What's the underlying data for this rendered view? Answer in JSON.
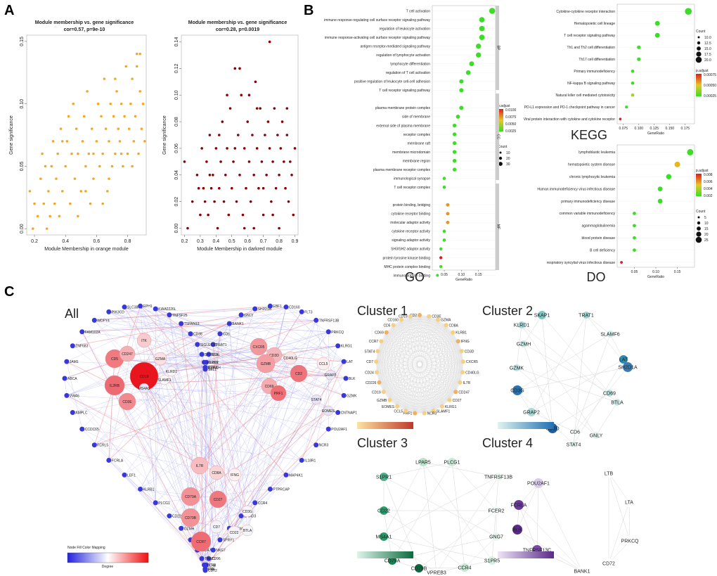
{
  "panels": {
    "A": "A",
    "B": "B",
    "C": "C"
  },
  "scatter_orange": {
    "title": "Module membership vs. gene significance",
    "stats": "cor=0.57, p=9e-10",
    "xlabel": "Module Membership in orange module",
    "ylabel": "Gene significance",
    "color": "#f5a623",
    "xticks": [
      "0.2",
      "0.4",
      "0.6",
      "0.8"
    ],
    "yticks": [
      "0.00",
      "0.05",
      "0.10",
      "0.15"
    ]
  },
  "scatter_darkred": {
    "title": "Module membership vs. gene significance",
    "stats": "cor=0.28, p=0.0019",
    "xlabel": "Module Membership in darkred module",
    "ylabel": "Gene significance",
    "color": "#8b0000",
    "xticks": [
      "0.2",
      "0.3",
      "0.4",
      "0.5",
      "0.6",
      "0.7",
      "0.8",
      "0.9"
    ],
    "yticks": [
      "0.00",
      "0.02",
      "0.04",
      "0.06",
      "0.08",
      "0.10",
      "0.12",
      "0.14"
    ]
  },
  "chart_data": [
    {
      "type": "scatter",
      "title": "Module membership vs. gene significance",
      "subtitle": "cor=0.57, p=9e-10",
      "xlabel": "Module Membership in orange module",
      "ylabel": "Gene significance",
      "xlim": [
        0.15,
        0.92
      ],
      "ylim": [
        -0.005,
        0.155
      ],
      "points": [
        [
          0.17,
          0.03
        ],
        [
          0.2,
          0.02
        ],
        [
          0.22,
          0.01
        ],
        [
          0.24,
          0.04
        ],
        [
          0.25,
          0.06
        ],
        [
          0.26,
          0.02
        ],
        [
          0.28,
          0.0
        ],
        [
          0.29,
          0.03
        ],
        [
          0.3,
          0.01
        ],
        [
          0.31,
          0.05
        ],
        [
          0.32,
          0.07
        ],
        [
          0.33,
          0.02
        ],
        [
          0.34,
          0.04
        ],
        [
          0.35,
          0.06
        ],
        [
          0.36,
          0.01
        ],
        [
          0.37,
          0.08
        ],
        [
          0.38,
          0.03
        ],
        [
          0.4,
          0.05
        ],
        [
          0.41,
          0.07
        ],
        [
          0.42,
          0.09
        ],
        [
          0.43,
          0.02
        ],
        [
          0.44,
          0.06
        ],
        [
          0.45,
          0.1
        ],
        [
          0.46,
          0.04
        ],
        [
          0.47,
          0.08
        ],
        [
          0.48,
          0.06
        ],
        [
          0.5,
          0.03
        ],
        [
          0.51,
          0.07
        ],
        [
          0.52,
          0.09
        ],
        [
          0.53,
          0.05
        ],
        [
          0.54,
          0.11
        ],
        [
          0.55,
          0.06
        ],
        [
          0.56,
          0.02
        ],
        [
          0.57,
          0.08
        ],
        [
          0.58,
          0.04
        ],
        [
          0.6,
          0.07
        ],
        [
          0.61,
          0.1
        ],
        [
          0.62,
          0.05
        ],
        [
          0.63,
          0.09
        ],
        [
          0.64,
          0.06
        ],
        [
          0.65,
          0.12
        ],
        [
          0.66,
          0.08
        ],
        [
          0.67,
          0.03
        ],
        [
          0.68,
          0.07
        ],
        [
          0.69,
          0.1
        ],
        [
          0.7,
          0.05
        ],
        [
          0.71,
          0.09
        ],
        [
          0.72,
          0.06
        ],
        [
          0.73,
          0.11
        ],
        [
          0.74,
          0.08
        ],
        [
          0.75,
          0.07
        ],
        [
          0.76,
          0.1
        ],
        [
          0.77,
          0.05
        ],
        [
          0.78,
          0.09
        ],
        [
          0.79,
          0.13
        ],
        [
          0.8,
          0.06
        ],
        [
          0.81,
          0.08
        ],
        [
          0.82,
          0.1
        ],
        [
          0.83,
          0.12
        ],
        [
          0.84,
          0.07
        ],
        [
          0.85,
          0.09
        ],
        [
          0.86,
          0.14
        ],
        [
          0.87,
          0.06
        ],
        [
          0.88,
          0.11
        ],
        [
          0.89,
          0.08
        ],
        [
          0.9,
          0.1
        ],
        [
          0.91,
          0.07
        ],
        [
          0.86,
          0.13
        ],
        [
          0.83,
          0.05
        ],
        [
          0.72,
          0.12
        ],
        [
          0.64,
          0.02
        ],
        [
          0.58,
          0.06
        ],
        [
          0.48,
          0.01
        ],
        [
          0.38,
          0.07
        ],
        [
          0.27,
          0.05
        ],
        [
          0.19,
          0.0
        ],
        [
          0.53,
          0.03
        ],
        [
          0.68,
          0.04
        ],
        [
          0.76,
          0.06
        ],
        [
          0.88,
          0.14
        ]
      ]
    },
    {
      "type": "scatter",
      "title": "Module membership vs. gene significance",
      "subtitle": "cor=0.28, p=0.0019",
      "xlabel": "Module Membership in darkred module",
      "ylabel": "Gene significance",
      "xlim": [
        0.18,
        0.92
      ],
      "ylim": [
        -0.005,
        0.145
      ],
      "points": [
        [
          0.2,
          0.05
        ],
        [
          0.22,
          0.0
        ],
        [
          0.25,
          0.02
        ],
        [
          0.28,
          0.04
        ],
        [
          0.3,
          0.01
        ],
        [
          0.31,
          0.06
        ],
        [
          0.32,
          0.03
        ],
        [
          0.33,
          0.02
        ],
        [
          0.34,
          0.05
        ],
        [
          0.35,
          0.01
        ],
        [
          0.36,
          0.07
        ],
        [
          0.37,
          0.03
        ],
        [
          0.38,
          0.04
        ],
        [
          0.39,
          0.02
        ],
        [
          0.4,
          0.06
        ],
        [
          0.41,
          0.0
        ],
        [
          0.42,
          0.03
        ],
        [
          0.43,
          0.05
        ],
        [
          0.44,
          0.08
        ],
        [
          0.45,
          0.02
        ],
        [
          0.46,
          0.04
        ],
        [
          0.47,
          0.06
        ],
        [
          0.48,
          0.01
        ],
        [
          0.49,
          0.09
        ],
        [
          0.5,
          0.03
        ],
        [
          0.51,
          0.05
        ],
        [
          0.52,
          0.12
        ],
        [
          0.53,
          0.02
        ],
        [
          0.54,
          0.07
        ],
        [
          0.55,
          0.04
        ],
        [
          0.56,
          0.1
        ],
        [
          0.57,
          0.01
        ],
        [
          0.58,
          0.06
        ],
        [
          0.59,
          0.03
        ],
        [
          0.6,
          0.08
        ],
        [
          0.61,
          0.05
        ],
        [
          0.62,
          0.02
        ],
        [
          0.63,
          0.07
        ],
        [
          0.64,
          0.04
        ],
        [
          0.65,
          0.11
        ],
        [
          0.66,
          0.06
        ],
        [
          0.67,
          0.03
        ],
        [
          0.68,
          0.09
        ],
        [
          0.69,
          0.05
        ],
        [
          0.7,
          0.01
        ],
        [
          0.71,
          0.07
        ],
        [
          0.72,
          0.04
        ],
        [
          0.73,
          0.08
        ],
        [
          0.74,
          0.06
        ],
        [
          0.75,
          0.02
        ],
        [
          0.76,
          0.05
        ],
        [
          0.77,
          0.09
        ],
        [
          0.78,
          0.03
        ],
        [
          0.79,
          0.07
        ],
        [
          0.8,
          0.04
        ],
        [
          0.81,
          0.06
        ],
        [
          0.82,
          0.08
        ],
        [
          0.83,
          0.05
        ],
        [
          0.84,
          0.03
        ],
        [
          0.85,
          0.07
        ],
        [
          0.86,
          0.02
        ],
        [
          0.87,
          0.05
        ],
        [
          0.88,
          0.04
        ],
        [
          0.89,
          0.01
        ],
        [
          0.9,
          0.06
        ],
        [
          0.74,
          0.14
        ],
        [
          0.55,
          0.12
        ],
        [
          0.61,
          0.1
        ],
        [
          0.47,
          0.1
        ],
        [
          0.66,
          0.09
        ],
        [
          0.42,
          0.07
        ],
        [
          0.36,
          0.04
        ],
        [
          0.58,
          0.0
        ],
        [
          0.7,
          0.03
        ],
        [
          0.8,
          0.0
        ],
        [
          0.85,
          0.09
        ],
        [
          0.29,
          0.03
        ],
        [
          0.52,
          0.06
        ],
        [
          0.64,
          0.0
        ],
        [
          0.76,
          0.01
        ]
      ]
    },
    {
      "type": "scatter",
      "title": "GO",
      "xlabel": "GeneRatio",
      "groups": [
        "BP",
        "CC",
        "MF"
      ],
      "categories": [
        "T cell activation",
        "immune response-regulating cell surface receptor signaling pathway",
        "regulation of leukocyte activation",
        "immune response-activating cell surface receptor signaling pathway",
        "antigen receptor-mediated signaling pathway",
        "regulation of lymphocyte activation",
        "lymphocyte differentiation",
        "regulation of T cell activation",
        "positive regulation of leukocyte cell-cell adhesion",
        "T cell receptor signaling pathway",
        "plasma membrane protein complex",
        "side of membrane",
        "external side of plasma membrane",
        "receptor complex",
        "membrane raft",
        "membrane microdomain",
        "membrane region",
        "plasma membrane receptor complex",
        "immunological synapse",
        "T cell receptor complex",
        "protein binding, bridging",
        "cytokine receptor binding",
        "molecular adaptor activity",
        "cytokine receptor activity",
        "signaling adaptor activity",
        "SH3/SH2 adaptor activity",
        "protein tyrosine kinase binding",
        "MHC protein complex binding",
        "immunoglobulin binding",
        "tumor necrosis factor receptor binding"
      ],
      "values": [
        0.19,
        0.16,
        0.16,
        0.16,
        0.15,
        0.15,
        0.13,
        0.12,
        0.1,
        0.1,
        0.1,
        0.09,
        0.08,
        0.08,
        0.08,
        0.08,
        0.08,
        0.08,
        0.05,
        0.05,
        0.06,
        0.06,
        0.06,
        0.05,
        0.05,
        0.04,
        0.04,
        0.04,
        0.03,
        0.03
      ],
      "xticks": [
        "0.05",
        "0.10",
        "0.15"
      ],
      "legend": {
        "title": "p.adjust",
        "ticks": [
          "0.0100",
          "0.0075",
          "0.0050",
          "0.0025"
        ],
        "count_title": "Count",
        "count_ticks": [
          "10",
          "20",
          "30"
        ]
      }
    },
    {
      "type": "scatter",
      "title": "KEGG",
      "xlabel": "GeneRatio",
      "categories": [
        "Cytokine-cytokine receptor interaction",
        "Hematopoietic cell lineage",
        "T cell receptor signaling pathway",
        "Th1 and Th2 cell differentiation",
        "Th17 cell differentiation",
        "Primary immunodeficiency",
        "NF-kappa B signaling pathway",
        "Natural killer cell mediated cytotoxicity",
        "PD-L1 expression and PD-1 checkpoint pathway in cancer",
        "Viral protein interaction with cytokine and cytokine receptor"
      ],
      "values": [
        0.18,
        0.13,
        0.13,
        0.1,
        0.1,
        0.09,
        0.09,
        0.09,
        0.08,
        0.07
      ],
      "xticks": [
        "0.075",
        "0.100",
        "0.125",
        "0.150",
        "0.175"
      ],
      "legend": {
        "title": "p.adjust",
        "ticks": [
          "0.00075",
          "0.00050",
          "0.00025"
        ],
        "count_title": "Count",
        "count_ticks": [
          "10.0",
          "12.5",
          "15.0",
          "17.5",
          "20.0"
        ]
      }
    },
    {
      "type": "scatter",
      "title": "DO",
      "xlabel": "GeneRatio",
      "categories": [
        "lymphoblastic leukemia",
        "hematopoietic system disease",
        "chronic lymphocytic leukemia",
        "Human immunodeficiency virus infectious disease",
        "primary immunodeficiency disease",
        "common variable immunodeficiency",
        "agammaglobulinemia",
        "blood protein disease",
        "B cell deficiency",
        "respiratory syncytial virus infectious disease"
      ],
      "values": [
        0.18,
        0.15,
        0.13,
        0.11,
        0.11,
        0.05,
        0.05,
        0.05,
        0.05,
        0.02
      ],
      "xticks": [
        "0.05",
        "0.10",
        "0.15"
      ],
      "legend": {
        "title": "p.adjust",
        "ticks": [
          "0.008",
          "0.006",
          "0.004",
          "0.002"
        ],
        "count_title": "Count",
        "count_ticks": [
          "5",
          "10",
          "15",
          "20",
          "25"
        ]
      }
    }
  ],
  "network": {
    "all_label": "All",
    "cluster_labels": [
      "Cluster 1",
      "Cluster 2",
      "Cluster 3",
      "Cluster 4"
    ],
    "legend_title": "Node Fill Color Mapping",
    "legend_axis": "Degree",
    "all_big_nodes": [
      "CD19",
      "CD5",
      "IL2RB",
      "CD3E",
      "CD247",
      "ITK",
      "GZMA",
      "CXCR5",
      "CD3D",
      "CD40LG",
      "GZMB",
      "CD69",
      "CD2",
      "PRF1",
      "CCL5",
      "IL7R",
      "CD8A",
      "IFNG",
      "CD79A",
      "CD27",
      "CD79B",
      "CCR7",
      "CD7",
      "CD22",
      "BTLA",
      "CD3G",
      "KLRD1",
      "SLAMF1",
      "MS4A1",
      "STAT4",
      "EOMES",
      "GRAP2"
    ],
    "all_small_nodes": [
      "SELL",
      "PRKCH",
      "IL21R",
      "NTLL",
      "TRAT1",
      "CD6",
      "BANK1",
      "GNLY",
      "SH2D1B",
      "EBF1",
      "CD160",
      "FLT3",
      "TNFRSF13B",
      "PRKCQ",
      "KLRG1",
      "LAT",
      "BLK",
      "GZMK",
      "CNTNAP1",
      "POU2AF1",
      "NCR3",
      "IL18R1",
      "MAP4K1",
      "PTPRCAP",
      "CCR4",
      "SAMD3",
      "TMEM14A",
      "SPRY1",
      "NKG7",
      "CD96",
      "LTB",
      "TXK",
      "CD72",
      "LTA",
      "CD48",
      "TRAT1",
      "CD247",
      "SH2D1A",
      "GZMH",
      "CD226",
      "PLCG1",
      "KLRB1",
      "LEF1",
      "FCRLA",
      "FCRL5",
      "CCDC65",
      "AMPLC",
      "VWA5",
      "ABCA",
      "JAM1",
      "ZNF683",
      "FAM102A",
      "WDFY4",
      "PIK3CD",
      "SLC38A1",
      "EPH1",
      "KIAA0226L",
      "TNFSF25",
      "TSPAN13",
      "CD38",
      "SIGLEC10",
      "SH2D1A",
      "KLRK1",
      "IL2RA"
    ],
    "cluster1_nodes": [
      "CD2",
      "CD3E",
      "GZMA",
      "CD8A",
      "KLRB1",
      "IFNG",
      "CD3D",
      "CXCR5",
      "CD40LG",
      "IL7R",
      "CD247",
      "CD27",
      "KLRG1",
      "SLAMF1",
      "NCR3",
      "PRF1",
      "CCL5",
      "EOMES",
      "GZMB",
      "CD19",
      "CD226",
      "CD24",
      "CD7",
      "STAT4",
      "CCR7",
      "CD69",
      "CD5",
      "CD160",
      "CD19"
    ],
    "cluster2_nodes": [
      "SKAP1",
      "TRAT1",
      "KLRD1",
      "SLAMF6",
      "GZMH",
      "LAT",
      "GZMK",
      "SH2D1A",
      "CD69",
      "CD3G",
      "BTLA",
      "GRAP2",
      "CD3D",
      "CD6",
      "GNLY",
      "STAT4"
    ],
    "cluster3_nodes": [
      "LPAR5",
      "PLCG1",
      "S1PR1",
      "TNFRSF13B",
      "CD22",
      "FCER2",
      "MS4A1",
      "GNG7",
      "CD79A",
      "S1PR5",
      "CD79B",
      "CCR4",
      "VPREB3"
    ],
    "cluster4_nodes": [
      "POU2AF1",
      "LTB",
      "FCRLA",
      "LTA",
      "BLK",
      "PRKCQ",
      "TNFRSF13C",
      "CD72",
      "BANK1"
    ]
  }
}
